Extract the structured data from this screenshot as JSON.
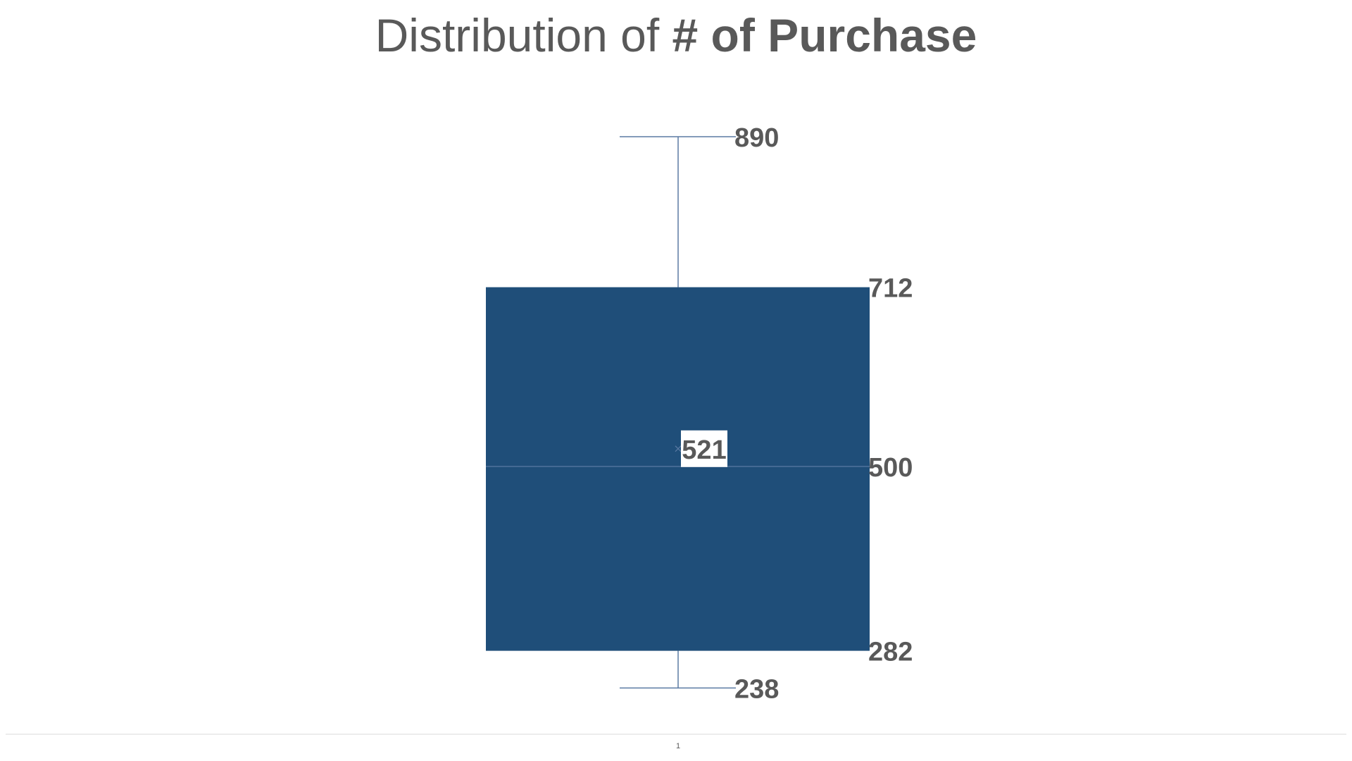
{
  "chart_data": {
    "type": "boxplot",
    "title": {
      "prefix": "Distribution of ",
      "emphasis": "# of Purchase"
    },
    "categories": [
      "1"
    ],
    "series": [
      {
        "min": 238,
        "q1": 282,
        "median": 500,
        "mean": 521,
        "q3": 712,
        "max": 890
      }
    ],
    "labels": {
      "min": "238",
      "q1": "282",
      "median": "500",
      "mean": "521",
      "q3": "712",
      "max": "890"
    },
    "ylim": [
      185,
      935
    ],
    "grid": false,
    "legend": "none",
    "colors": {
      "box_fill": "#1F4E79",
      "whisker": "#5B7AA3",
      "median_line": "#5B7AA3",
      "label_text": "#595959",
      "axis_line": "#D9D9D9"
    }
  }
}
